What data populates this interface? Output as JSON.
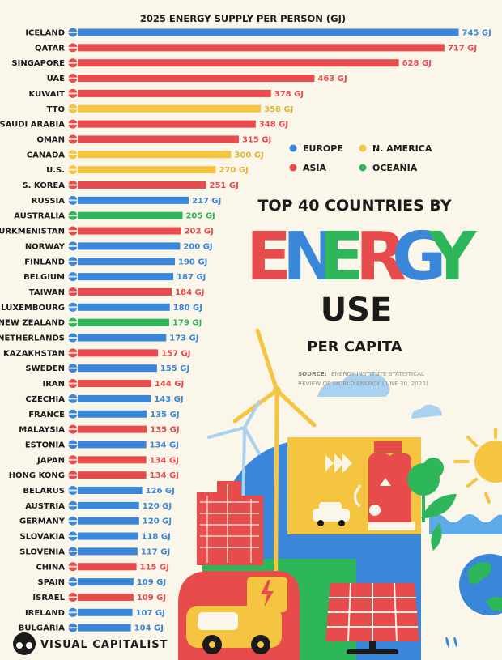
{
  "header": {
    "title_line1": "TOP 40 COUNTRIES BY",
    "title_energy": "ENERGY",
    "title_use": "USE",
    "title_per": "PER CAPITA",
    "energy_letters": [
      {
        "char": "E",
        "color": "#e84b4b"
      },
      {
        "char": "N",
        "color": "#3a86d9"
      },
      {
        "char": "E",
        "color": "#2db65a"
      },
      {
        "char": "R",
        "color": "#e84b4b"
      },
      {
        "char": "G",
        "color": "#3a86d9"
      },
      {
        "char": "Y",
        "color": "#2db65a"
      }
    ]
  },
  "source": {
    "label": "SOURCE:",
    "line1": "ENERGY INSTITUTE STATISTICAL",
    "line2": "REVIEW OF WORLD ENERGY (JUNE 30, 2026)"
  },
  "brand": {
    "name": "VISUAL CAPITALIST"
  },
  "legend": [
    {
      "name": "EUROPE",
      "color": "#3a86d9"
    },
    {
      "name": "N. AMERICA",
      "color": "#f5c542"
    },
    {
      "name": "ASIA",
      "color": "#e84b4b"
    },
    {
      "name": "OCEANIA",
      "color": "#2db65a"
    }
  ],
  "colors": {
    "EUROPE": "#3a86d9",
    "N. AMERICA": "#e0b43a",
    "ASIA": "#e84b4b",
    "OCEANIA": "#2db65a",
    "bar_EUROPE": "#3a86d9",
    "bar_N. AMERICA": "#f5c542",
    "bar_ASIA": "#e84b4b",
    "bar_OCEANIA": "#2db65a"
  },
  "chart_data": {
    "type": "bar",
    "orientation": "horizontal",
    "title": "2025 ENERGY SUPPLY PER PERSON (GJ)",
    "unit": "GJ",
    "xlim": [
      0,
      760
    ],
    "grid": false,
    "legend_placement": "right",
    "bars": [
      {
        "country": "ICELAND",
        "value": 745,
        "region": "EUROPE"
      },
      {
        "country": "QATAR",
        "value": 717,
        "region": "ASIA"
      },
      {
        "country": "SINGAPORE",
        "value": 628,
        "region": "ASIA"
      },
      {
        "country": "UAE",
        "value": 463,
        "region": "ASIA"
      },
      {
        "country": "KUWAIT",
        "value": 378,
        "region": "ASIA"
      },
      {
        "country": "TTO",
        "value": 358,
        "region": "N. AMERICA"
      },
      {
        "country": "SAUDI ARABIA",
        "value": 348,
        "region": "ASIA"
      },
      {
        "country": "OMAN",
        "value": 315,
        "region": "ASIA"
      },
      {
        "country": "CANADA",
        "value": 300,
        "region": "N. AMERICA"
      },
      {
        "country": "U.S.",
        "value": 270,
        "region": "N. AMERICA"
      },
      {
        "country": "S. KOREA",
        "value": 251,
        "region": "ASIA"
      },
      {
        "country": "RUSSIA",
        "value": 217,
        "region": "EUROPE"
      },
      {
        "country": "AUSTRALIA",
        "value": 205,
        "region": "OCEANIA"
      },
      {
        "country": "TURKMENISTAN",
        "value": 202,
        "region": "ASIA"
      },
      {
        "country": "NORWAY",
        "value": 200,
        "region": "EUROPE"
      },
      {
        "country": "FINLAND",
        "value": 190,
        "region": "EUROPE"
      },
      {
        "country": "BELGIUM",
        "value": 187,
        "region": "EUROPE"
      },
      {
        "country": "TAIWAN",
        "value": 184,
        "region": "ASIA"
      },
      {
        "country": "LUXEMBOURG",
        "value": 180,
        "region": "EUROPE"
      },
      {
        "country": "NEW ZEALAND",
        "value": 179,
        "region": "OCEANIA"
      },
      {
        "country": "NETHERLANDS",
        "value": 173,
        "region": "EUROPE"
      },
      {
        "country": "KAZAKHSTAN",
        "value": 157,
        "region": "ASIA"
      },
      {
        "country": "SWEDEN",
        "value": 155,
        "region": "EUROPE"
      },
      {
        "country": "IRAN",
        "value": 144,
        "region": "ASIA"
      },
      {
        "country": "CZECHIA",
        "value": 143,
        "region": "EUROPE"
      },
      {
        "country": "FRANCE",
        "value": 135,
        "region": "EUROPE"
      },
      {
        "country": "MALAYSIA",
        "value": 135,
        "region": "ASIA"
      },
      {
        "country": "ESTONIA",
        "value": 134,
        "region": "EUROPE"
      },
      {
        "country": "JAPAN",
        "value": 134,
        "region": "ASIA"
      },
      {
        "country": "HONG KONG",
        "value": 134,
        "region": "ASIA"
      },
      {
        "country": "BELARUS",
        "value": 126,
        "region": "EUROPE"
      },
      {
        "country": "AUSTRIA",
        "value": 120,
        "region": "EUROPE"
      },
      {
        "country": "GERMANY",
        "value": 120,
        "region": "EUROPE"
      },
      {
        "country": "SLOVAKIA",
        "value": 118,
        "region": "EUROPE"
      },
      {
        "country": "SLOVENIA",
        "value": 117,
        "region": "EUROPE"
      },
      {
        "country": "CHINA",
        "value": 115,
        "region": "ASIA"
      },
      {
        "country": "SPAIN",
        "value": 109,
        "region": "EUROPE"
      },
      {
        "country": "ISRAEL",
        "value": 109,
        "region": "ASIA"
      },
      {
        "country": "IRELAND",
        "value": 107,
        "region": "EUROPE"
      },
      {
        "country": "BULGARIA",
        "value": 104,
        "region": "EUROPE"
      }
    ]
  }
}
